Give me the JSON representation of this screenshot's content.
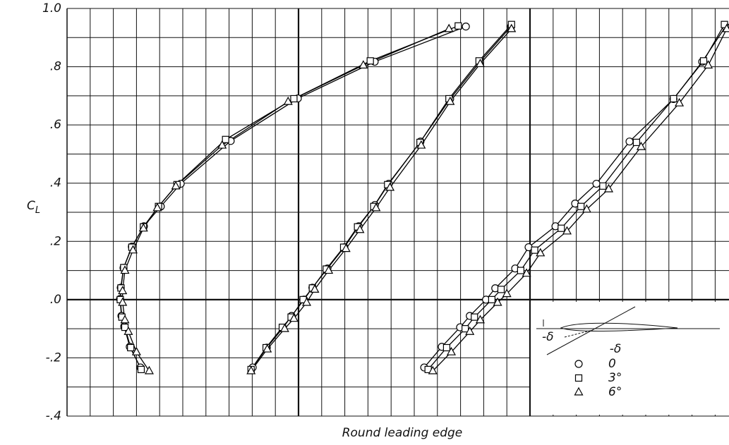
{
  "chart_data": {
    "type": "line",
    "ylabel": "C",
    "ylabel_sub": "L",
    "xlabel": "Round leading edge",
    "xlim": [
      0,
      28.6
    ],
    "xticks": [
      0,
      1,
      2,
      3,
      4,
      5,
      6,
      7,
      8,
      9,
      10,
      11,
      12,
      13,
      14,
      15,
      16,
      17,
      18,
      19,
      20,
      21,
      22,
      23,
      24,
      25,
      26,
      27,
      28
    ],
    "heavy_xgrid": [
      10,
      20
    ],
    "ylim": [
      -0.4,
      1.0
    ],
    "yticks": [
      {
        "value": -0.4,
        "label": "-.4"
      },
      {
        "value": -0.2,
        "label": "-.2"
      },
      {
        "value": 0,
        "label": ".0"
      },
      {
        "value": 0.2,
        "label": ".2"
      },
      {
        "value": 0.4,
        "label": ".4"
      },
      {
        "value": 0.6,
        "label": ".6"
      },
      {
        "value": 0.8,
        "label": ".8"
      },
      {
        "value": 1.0,
        "label": "1.0"
      }
    ],
    "ygrid": [
      -0.4,
      -0.3,
      -0.2,
      -0.1,
      0,
      0.1,
      0.2,
      0.3,
      0.4,
      0.5,
      0.6,
      0.7,
      0.8,
      0.9,
      1.0
    ],
    "heavy_ygrid": [
      0
    ],
    "grid": true,
    "color": "#000000",
    "legend_title": "-δ",
    "inset_label": "-δ",
    "series": [
      {
        "name": "0",
        "marker": "circle",
        "curves": [
          {
            "x": [
              3.17,
              2.71,
              2.47,
              2.35,
              2.29,
              2.32,
              2.44,
              2.8,
              3.32,
              4.05,
              4.91,
              7.07,
              9.97,
              13.29,
              17.23
            ],
            "values": [
              -0.233,
              -0.162,
              -0.092,
              -0.056,
              0.002,
              0.041,
              0.109,
              0.182,
              0.252,
              0.32,
              0.398,
              0.545,
              0.691,
              0.817,
              0.938
            ]
          },
          {
            "x": [
              8.02,
              8.63,
              9.33,
              9.7,
              10.24,
              10.6,
              11.25,
              11.98,
              12.6,
              13.3,
              13.9,
              15.27,
              16.55,
              17.84,
              19.18
            ],
            "values": [
              -0.233,
              -0.165,
              -0.097,
              -0.056,
              0.0,
              0.041,
              0.107,
              0.18,
              0.252,
              0.325,
              0.398,
              0.543,
              0.689,
              0.817,
              0.938
            ]
          },
          {
            "x": [
              15.43,
              16.19,
              16.98,
              17.4,
              18.1,
              18.5,
              19.36,
              19.94,
              21.1,
              21.95,
              22.87,
              24.3,
              26.2,
              27.44,
              28.45
            ],
            "values": [
              -0.233,
              -0.162,
              -0.095,
              -0.056,
              0.0,
              0.039,
              0.107,
              0.18,
              0.252,
              0.33,
              0.398,
              0.543,
              0.689,
              0.817,
              0.938
            ]
          }
        ]
      },
      {
        "name": "3°",
        "marker": "square",
        "curves": [
          {
            "x": [
              3.2,
              2.75,
              2.5,
              2.37,
              2.3,
              2.33,
              2.45,
              2.8,
              3.3,
              3.95,
              4.75,
              6.85,
              9.8,
              13.1,
              16.9
            ],
            "values": [
              -0.24,
              -0.165,
              -0.095,
              -0.06,
              0.0,
              0.04,
              0.11,
              0.18,
              0.25,
              0.32,
              0.395,
              0.55,
              0.69,
              0.82,
              0.94
            ]
          },
          {
            "x": [
              7.95,
              8.6,
              9.3,
              9.68,
              10.2,
              10.6,
              11.2,
              11.95,
              12.55,
              13.25,
              13.85,
              15.25,
              16.5,
              17.8,
              19.2
            ],
            "values": [
              -0.24,
              -0.165,
              -0.095,
              -0.06,
              0.0,
              0.04,
              0.105,
              0.18,
              0.25,
              0.32,
              0.395,
              0.54,
              0.69,
              0.82,
              0.945
            ]
          },
          {
            "x": [
              15.6,
              16.4,
              17.2,
              17.6,
              18.35,
              18.75,
              19.6,
              20.2,
              21.35,
              22.2,
              23.15,
              24.6,
              26.2,
              27.5,
              28.4
            ],
            "values": [
              -0.24,
              -0.165,
              -0.1,
              -0.06,
              0.0,
              0.035,
              0.1,
              0.17,
              0.245,
              0.32,
              0.39,
              0.54,
              0.69,
              0.82,
              0.945
            ]
          }
        ]
      },
      {
        "name": "6°",
        "marker": "triangle",
        "curves": [
          {
            "x": [
              3.55,
              3.0,
              2.65,
              2.5,
              2.4,
              2.4,
              2.5,
              2.85,
              3.3,
              3.9,
              4.7,
              6.7,
              9.55,
              12.8,
              16.5
            ],
            "values": [
              -0.245,
              -0.18,
              -0.11,
              -0.07,
              -0.01,
              0.03,
              0.1,
              0.17,
              0.245,
              0.315,
              0.39,
              0.53,
              0.68,
              0.805,
              0.93
            ]
          },
          {
            "x": [
              7.95,
              8.65,
              9.4,
              9.8,
              10.35,
              10.7,
              11.3,
              12.05,
              12.65,
              13.35,
              13.95,
              15.3,
              16.55,
              17.85,
              19.2
            ],
            "values": [
              -0.245,
              -0.17,
              -0.1,
              -0.065,
              -0.01,
              0.035,
              0.1,
              0.175,
              0.24,
              0.315,
              0.385,
              0.53,
              0.68,
              0.81,
              0.93
            ]
          },
          {
            "x": [
              15.8,
              16.6,
              17.4,
              17.85,
              18.6,
              19.0,
              19.85,
              20.45,
              21.6,
              22.45,
              23.4,
              24.8,
              26.45,
              27.7,
              28.5
            ],
            "values": [
              -0.245,
              -0.18,
              -0.11,
              -0.07,
              -0.01,
              0.02,
              0.09,
              0.16,
              0.235,
              0.31,
              0.38,
              0.525,
              0.675,
              0.805,
              0.93
            ]
          }
        ]
      }
    ]
  }
}
